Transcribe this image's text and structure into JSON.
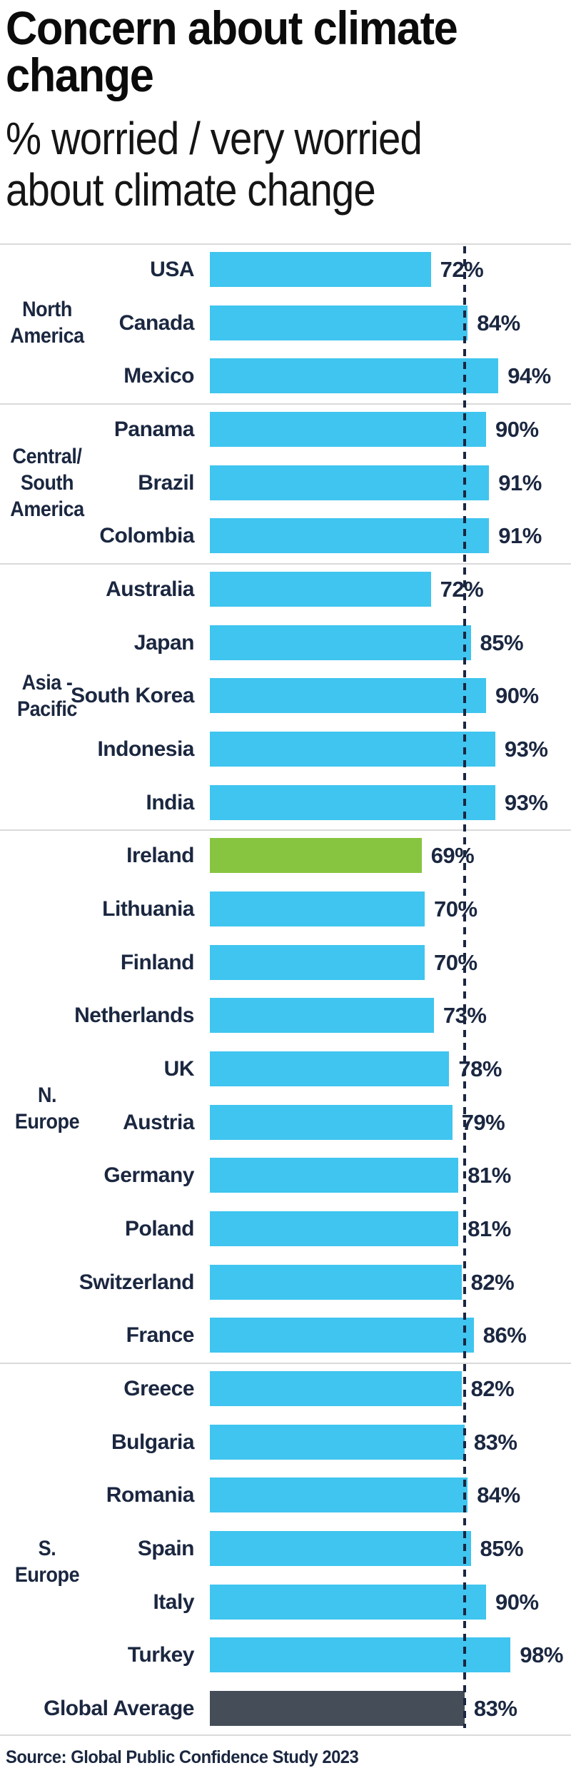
{
  "title_lines": [
    "Concern about climate",
    "change"
  ],
  "subtitle_lines": [
    "% worried / very worried",
    "about climate change"
  ],
  "source": "Source: Global Public Confidence Study 2023",
  "colors": {
    "bar_blue": "#3FC5EF",
    "bar_highlight_green": "#87C440",
    "bar_average_slate": "#454E58",
    "text_navy": "#1B2740",
    "divider_gray": "#DADADA",
    "title_black": "#0B0B0B"
  },
  "chart_data": {
    "type": "bar",
    "orientation": "horizontal",
    "unit": "%",
    "xlim": [
      0,
      100
    ],
    "grid": false,
    "average_line": {
      "value": 83,
      "style": "dashed"
    },
    "groups": [
      {
        "label_lines": [
          "North",
          "America"
        ],
        "rows": [
          {
            "country": "USA",
            "value": 72
          },
          {
            "country": "Canada",
            "value": 84
          },
          {
            "country": "Mexico",
            "value": 94
          }
        ]
      },
      {
        "label_lines": [
          "Central/",
          "South",
          "America"
        ],
        "rows": [
          {
            "country": "Panama",
            "value": 90
          },
          {
            "country": "Brazil",
            "value": 91
          },
          {
            "country": "Colombia",
            "value": 91
          }
        ]
      },
      {
        "label_lines": [
          "Asia -",
          "Pacific"
        ],
        "rows": [
          {
            "country": "Australia",
            "value": 72
          },
          {
            "country": "Japan",
            "value": 85
          },
          {
            "country": "South Korea",
            "value": 90
          },
          {
            "country": "Indonesia",
            "value": 93
          },
          {
            "country": "India",
            "value": 93
          }
        ]
      },
      {
        "label_lines": [
          "N. Europe"
        ],
        "rows": [
          {
            "country": "Ireland",
            "value": 69,
            "variant": "highlight",
            "bold": true
          },
          {
            "country": "Lithuania",
            "value": 70
          },
          {
            "country": "Finland",
            "value": 70
          },
          {
            "country": "Netherlands",
            "value": 73
          },
          {
            "country": "UK",
            "value": 78
          },
          {
            "country": "Austria",
            "value": 79
          },
          {
            "country": "Germany",
            "value": 81
          },
          {
            "country": "Poland",
            "value": 81
          },
          {
            "country": "Switzerland",
            "value": 82
          },
          {
            "country": "France",
            "value": 86
          }
        ]
      },
      {
        "label_lines": [
          "S. Europe"
        ],
        "rows": [
          {
            "country": "Greece",
            "value": 82
          },
          {
            "country": "Bulgaria",
            "value": 83
          },
          {
            "country": "Romania",
            "value": 84
          },
          {
            "country": "Spain",
            "value": 85
          },
          {
            "country": "Italy",
            "value": 90
          },
          {
            "country": "Turkey",
            "value": 98
          }
        ]
      },
      {
        "label_lines": [],
        "rows": [
          {
            "country": "Global Average",
            "value": 83,
            "variant": "average"
          }
        ]
      }
    ]
  }
}
